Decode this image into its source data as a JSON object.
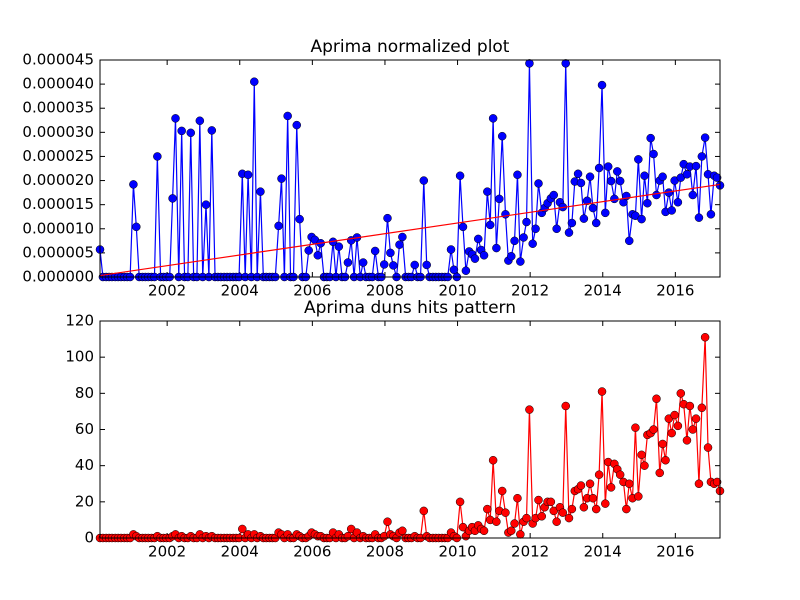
{
  "chart_data": [
    {
      "type": "line",
      "title": "Aprima normalized plot",
      "x": [
        2000.15,
        2000.23,
        2000.32,
        2000.4,
        2000.48,
        2000.57,
        2000.65,
        2000.73,
        2000.82,
        2000.9,
        2000.98,
        2001.07,
        2001.15,
        2001.23,
        2001.32,
        2001.4,
        2001.48,
        2001.57,
        2001.65,
        2001.73,
        2001.82,
        2001.9,
        2001.98,
        2002.07,
        2002.15,
        2002.23,
        2002.32,
        2002.4,
        2002.48,
        2002.57,
        2002.65,
        2002.73,
        2002.82,
        2002.9,
        2002.98,
        2003.07,
        2003.15,
        2003.23,
        2003.32,
        2003.4,
        2003.48,
        2003.57,
        2003.65,
        2003.73,
        2003.82,
        2003.9,
        2003.98,
        2004.07,
        2004.15,
        2004.23,
        2004.32,
        2004.4,
        2004.48,
        2004.57,
        2004.65,
        2004.73,
        2004.82,
        2004.9,
        2004.98,
        2005.07,
        2005.15,
        2005.23,
        2005.32,
        2005.4,
        2005.48,
        2005.57,
        2005.65,
        2005.73,
        2005.82,
        2005.9,
        2005.98,
        2006.07,
        2006.15,
        2006.23,
        2006.32,
        2006.4,
        2006.48,
        2006.57,
        2006.65,
        2006.73,
        2006.82,
        2006.9,
        2006.98,
        2007.07,
        2007.15,
        2007.23,
        2007.32,
        2007.4,
        2007.48,
        2007.57,
        2007.65,
        2007.73,
        2007.82,
        2007.9,
        2007.98,
        2008.07,
        2008.15,
        2008.23,
        2008.32,
        2008.4,
        2008.48,
        2008.57,
        2008.65,
        2008.73,
        2008.82,
        2008.9,
        2008.98,
        2009.07,
        2009.15,
        2009.23,
        2009.32,
        2009.4,
        2009.48,
        2009.57,
        2009.65,
        2009.73,
        2009.82,
        2009.9,
        2009.98,
        2010.07,
        2010.15,
        2010.23,
        2010.32,
        2010.4,
        2010.48,
        2010.57,
        2010.65,
        2010.73,
        2010.82,
        2010.9,
        2010.98,
        2011.07,
        2011.15,
        2011.23,
        2011.32,
        2011.4,
        2011.48,
        2011.57,
        2011.65,
        2011.73,
        2011.82,
        2011.9,
        2011.98,
        2012.07,
        2012.15,
        2012.23,
        2012.32,
        2012.4,
        2012.48,
        2012.57,
        2012.65,
        2012.73,
        2012.82,
        2012.9,
        2012.98,
        2013.07,
        2013.15,
        2013.23,
        2013.32,
        2013.4,
        2013.48,
        2013.57,
        2013.65,
        2013.73,
        2013.82,
        2013.9,
        2013.98,
        2014.07,
        2014.15,
        2014.23,
        2014.32,
        2014.4,
        2014.48,
        2014.57,
        2014.65,
        2014.73,
        2014.82,
        2014.9,
        2014.98,
        2015.07,
        2015.15,
        2015.23,
        2015.32,
        2015.4,
        2015.48,
        2015.57,
        2015.65,
        2015.73,
        2015.82,
        2015.9,
        2015.98,
        2016.07,
        2016.15,
        2016.23,
        2016.32,
        2016.4,
        2016.48,
        2016.57,
        2016.65,
        2016.73,
        2016.82,
        2016.9,
        2016.98,
        2017.07,
        2017.15,
        2017.23
      ],
      "series": [
        {
          "color": "#0000ff",
          "marker": true,
          "values": [
            5.7e-06,
            0,
            0,
            0,
            0,
            0,
            0,
            0,
            0,
            0,
            0,
            1.92e-05,
            1.04e-05,
            0,
            0,
            0,
            0,
            0,
            0,
            2.5e-05,
            0,
            0,
            0,
            0,
            1.63e-05,
            3.29e-05,
            0,
            3.03e-05,
            0,
            0,
            2.99e-05,
            0,
            0,
            3.24e-05,
            0,
            1.5e-05,
            0,
            3.04e-05,
            0,
            0,
            0,
            0,
            0,
            0,
            0,
            0,
            0,
            2.14e-05,
            0,
            2.12e-05,
            0,
            4.05e-05,
            0,
            1.77e-05,
            0,
            0,
            0,
            0,
            0,
            1.06e-05,
            2.04e-05,
            0,
            3.34e-05,
            0,
            0,
            3.15e-05,
            1.2e-05,
            0,
            0,
            5.5e-06,
            8.3e-06,
            7.7e-06,
            4.5e-06,
            7e-06,
            0,
            0,
            0,
            7.3e-06,
            0,
            6.3e-06,
            0,
            0,
            3e-06,
            7.6e-06,
            0,
            8.2e-06,
            0,
            3e-06,
            0,
            0,
            0,
            5.4e-06,
            0,
            0,
            2.6e-06,
            1.22e-05,
            5e-06,
            2.4e-06,
            0,
            6.7e-06,
            8.3e-06,
            0,
            0,
            0,
            2.5e-06,
            0,
            0,
            2e-05,
            2.5e-06,
            0,
            0,
            0,
            0,
            0,
            0,
            0,
            5.7e-06,
            1.5e-06,
            0,
            2.1e-05,
            1.04e-05,
            1.3e-06,
            5.3e-06,
            4.7e-06,
            3.8e-06,
            7.9e-06,
            5.6e-06,
            4.5e-06,
            1.77e-05,
            1.08e-05,
            3.29e-05,
            6e-06,
            1.62e-05,
            2.92e-05,
            1.3e-05,
            3.4e-06,
            4.3e-06,
            7.5e-06,
            2.12e-05,
            3.2e-06,
            8.2e-06,
            1.14e-05,
            4.43e-05,
            6.9e-06,
            1e-05,
            1.94e-05,
            1.33e-05,
            1.43e-05,
            1.53e-05,
            1.63e-05,
            1.7e-05,
            1e-05,
            1.55e-05,
            1.45e-05,
            4.43e-05,
            9.2e-06,
            1.12e-05,
            1.98e-05,
            2.14e-05,
            1.95e-05,
            1.21e-05,
            1.58e-05,
            2.08e-05,
            1.43e-05,
            1.12e-05,
            2.26e-05,
            3.98e-05,
            1.33e-05,
            2.29e-05,
            1.99e-05,
            1.62e-05,
            2.19e-05,
            1.99e-05,
            1.55e-05,
            1.68e-05,
            7.5e-06,
            1.3e-05,
            1.27e-05,
            2.44e-05,
            1.2e-05,
            2.1e-05,
            1.53e-05,
            2.88e-05,
            2.55e-05,
            1.7e-05,
            2e-05,
            2.08e-05,
            1.35e-05,
            1.75e-05,
            1.38e-05,
            2e-05,
            1.55e-05,
            2.06e-05,
            2.34e-05,
            2.13e-05,
            2.29e-05,
            1.7e-05,
            2.3e-05,
            1.23e-05,
            2.5e-05,
            2.89e-05,
            2.13e-05,
            1.3e-05,
            2.1e-05,
            2.06e-05,
            1.9e-05
          ]
        },
        {
          "color": "#ff0000",
          "marker": false,
          "x": [
            2000.15,
            2017.23
          ],
          "values": [
            3e-07,
            1.92e-05
          ]
        }
      ],
      "xlim": [
        2000.15,
        2017.23
      ],
      "xticks": [
        2002,
        2004,
        2006,
        2008,
        2010,
        2012,
        2014,
        2016
      ],
      "ylim": [
        0,
        4.5e-05
      ],
      "yticks": [
        {
          "value": 0,
          "label": "0.000000"
        },
        {
          "value": 5e-06,
          "label": "0.000005"
        },
        {
          "value": 1e-05,
          "label": "0.000010"
        },
        {
          "value": 1.5e-05,
          "label": "0.000015"
        },
        {
          "value": 2e-05,
          "label": "0.000020"
        },
        {
          "value": 2.5e-05,
          "label": "0.000025"
        },
        {
          "value": 3e-05,
          "label": "0.000030"
        },
        {
          "value": 3.5e-05,
          "label": "0.000035"
        },
        {
          "value": 4e-05,
          "label": "0.000040"
        },
        {
          "value": 4.5e-05,
          "label": "0.000045"
        }
      ],
      "grid": false
    },
    {
      "type": "line",
      "title": "Aprima duns hits pattern",
      "x": [
        2000.15,
        2000.23,
        2000.32,
        2000.4,
        2000.48,
        2000.57,
        2000.65,
        2000.73,
        2000.82,
        2000.9,
        2000.98,
        2001.07,
        2001.15,
        2001.23,
        2001.32,
        2001.4,
        2001.48,
        2001.57,
        2001.65,
        2001.73,
        2001.82,
        2001.9,
        2001.98,
        2002.07,
        2002.15,
        2002.23,
        2002.32,
        2002.4,
        2002.48,
        2002.57,
        2002.65,
        2002.73,
        2002.82,
        2002.9,
        2002.98,
        2003.07,
        2003.15,
        2003.23,
        2003.32,
        2003.4,
        2003.48,
        2003.57,
        2003.65,
        2003.73,
        2003.82,
        2003.9,
        2003.98,
        2004.07,
        2004.15,
        2004.23,
        2004.32,
        2004.4,
        2004.48,
        2004.57,
        2004.65,
        2004.73,
        2004.82,
        2004.9,
        2004.98,
        2005.07,
        2005.15,
        2005.23,
        2005.32,
        2005.4,
        2005.48,
        2005.57,
        2005.65,
        2005.73,
        2005.82,
        2005.9,
        2005.98,
        2006.07,
        2006.15,
        2006.23,
        2006.32,
        2006.4,
        2006.48,
        2006.57,
        2006.65,
        2006.73,
        2006.82,
        2006.9,
        2006.98,
        2007.07,
        2007.15,
        2007.23,
        2007.32,
        2007.4,
        2007.48,
        2007.57,
        2007.65,
        2007.73,
        2007.82,
        2007.9,
        2007.98,
        2008.07,
        2008.15,
        2008.23,
        2008.32,
        2008.4,
        2008.48,
        2008.57,
        2008.65,
        2008.73,
        2008.82,
        2008.9,
        2008.98,
        2009.07,
        2009.15,
        2009.23,
        2009.32,
        2009.4,
        2009.48,
        2009.57,
        2009.65,
        2009.73,
        2009.82,
        2009.9,
        2009.98,
        2010.07,
        2010.15,
        2010.23,
        2010.32,
        2010.4,
        2010.48,
        2010.57,
        2010.65,
        2010.73,
        2010.82,
        2010.9,
        2010.98,
        2011.07,
        2011.15,
        2011.23,
        2011.32,
        2011.4,
        2011.48,
        2011.57,
        2011.65,
        2011.73,
        2011.82,
        2011.9,
        2011.98,
        2012.07,
        2012.15,
        2012.23,
        2012.32,
        2012.4,
        2012.48,
        2012.57,
        2012.65,
        2012.73,
        2012.82,
        2012.9,
        2012.98,
        2013.07,
        2013.15,
        2013.23,
        2013.32,
        2013.4,
        2013.48,
        2013.57,
        2013.65,
        2013.73,
        2013.82,
        2013.9,
        2013.98,
        2014.07,
        2014.15,
        2014.23,
        2014.32,
        2014.4,
        2014.48,
        2014.57,
        2014.65,
        2014.73,
        2014.82,
        2014.9,
        2014.98,
        2015.07,
        2015.15,
        2015.23,
        2015.32,
        2015.4,
        2015.48,
        2015.57,
        2015.65,
        2015.73,
        2015.82,
        2015.9,
        2015.98,
        2016.07,
        2016.15,
        2016.23,
        2016.32,
        2016.4,
        2016.48,
        2016.57,
        2016.65,
        2016.73,
        2016.82,
        2016.9,
        2016.98,
        2017.07,
        2017.15,
        2017.23
      ],
      "series": [
        {
          "color": "#ff0000",
          "marker": true,
          "values": [
            0,
            0,
            0,
            0,
            0,
            0,
            0,
            0,
            0,
            0,
            0,
            2,
            1,
            0,
            0,
            0,
            0,
            0,
            0,
            1,
            0,
            0,
            0,
            0,
            1,
            2,
            0,
            1,
            0,
            0,
            1,
            0,
            0,
            2,
            0,
            1,
            0,
            1,
            0,
            0,
            0,
            0,
            0,
            0,
            0,
            0,
            0,
            5,
            0,
            2,
            0,
            2,
            0,
            1,
            0,
            0,
            0,
            0,
            0,
            3,
            2,
            0,
            2,
            0,
            0,
            2,
            1,
            0,
            0,
            1,
            3,
            2,
            1,
            1,
            0,
            0,
            0,
            3,
            0,
            2,
            0,
            0,
            1,
            5,
            0,
            3,
            0,
            1,
            0,
            0,
            0,
            2,
            0,
            0,
            1,
            9,
            2,
            1,
            0,
            3,
            4,
            0,
            0,
            0,
            1,
            0,
            0,
            15,
            1,
            0,
            0,
            0,
            0,
            0,
            0,
            0,
            3,
            1,
            0,
            20,
            6,
            1,
            4,
            6,
            4,
            7,
            5,
            4,
            16,
            10,
            43,
            9,
            15,
            26,
            14,
            3,
            4,
            8,
            22,
            2,
            9,
            11,
            71,
            8,
            11,
            21,
            12,
            17,
            20,
            20,
            15,
            9,
            17,
            14,
            73,
            11,
            16,
            26,
            27,
            29,
            17,
            22,
            30,
            22,
            16,
            35,
            81,
            19,
            42,
            28,
            41,
            38,
            35,
            31,
            16,
            30,
            22,
            61,
            23,
            46,
            40,
            57,
            58,
            60,
            77,
            36,
            52,
            43,
            66,
            58,
            68,
            62,
            80,
            74,
            54,
            73,
            60,
            66,
            30,
            72,
            111,
            50,
            31,
            30,
            31,
            26
          ]
        }
      ],
      "xlim": [
        2000.15,
        2017.23
      ],
      "xticks": [
        2002,
        2004,
        2006,
        2008,
        2010,
        2012,
        2014,
        2016
      ],
      "ylim": [
        0,
        120
      ],
      "yticks": [
        0,
        20,
        40,
        60,
        80,
        100,
        120
      ],
      "grid": false
    }
  ]
}
